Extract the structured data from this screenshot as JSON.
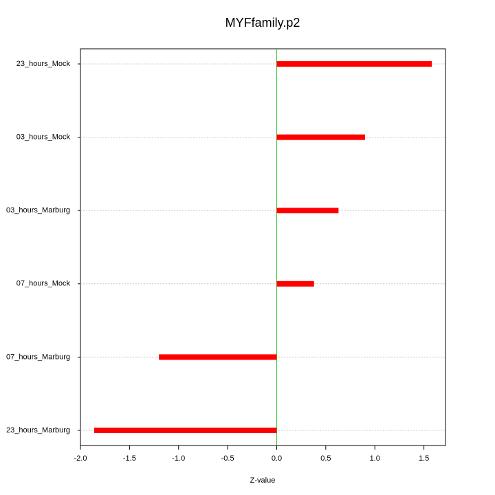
{
  "chart_data": {
    "type": "bar",
    "orientation": "horizontal",
    "title": "MYFfamily.p2",
    "x_label": "Z-value",
    "categories": [
      "23_hours_Mock",
      "03_hours_Mock",
      "03_hours_Marburg",
      "07_hours_Mock",
      "07_hours_Marburg",
      "23_hours_Marburg"
    ],
    "values": [
      1.58,
      0.9,
      0.63,
      0.38,
      -1.2,
      -1.86
    ],
    "color": "#ff0000",
    "zero_line_color": "#33cc33",
    "grid": true,
    "xlim": [
      -2.0,
      1.72
    ],
    "xticks": [
      {
        "value": -2,
        "label": "-2.0"
      },
      -1.5,
      {
        "value": -1,
        "label": "-1.0"
      },
      -0.5,
      {
        "value": 0,
        "label": "0.0"
      },
      0.5,
      {
        "value": 1,
        "label": "1.0"
      },
      1.5
    ]
  }
}
